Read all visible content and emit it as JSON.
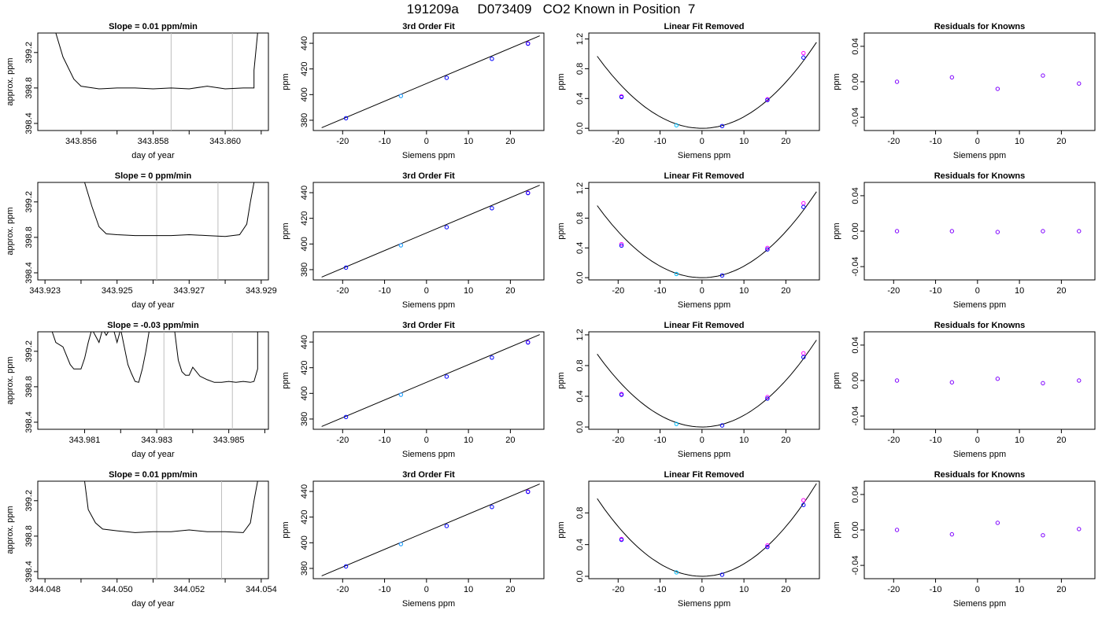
{
  "page": {
    "title": "191209a     D073409   CO2 Known in Position  7"
  },
  "colors": {
    "trace": "#000000",
    "grid_vline": "#bebebe",
    "points_siemens": "#0000ff",
    "points_alt": "#ff00ff",
    "points_cyan": "#00bfff",
    "residual_points": "#7f00ff"
  },
  "chart_data": [
    {
      "type": "line",
      "row": 0,
      "col": 0,
      "title": "Slope =  0.01  ppm/min",
      "xlabel": "day of year",
      "ylabel": "approx. ppm",
      "xlim": [
        343.8548,
        343.8612
      ],
      "ylim": [
        398.32,
        399.42
      ],
      "xticks": [
        343.856,
        343.857,
        343.858,
        343.859,
        343.86,
        343.861
      ],
      "xticklabels": [
        "343.856",
        "",
        "343.858",
        "",
        "343.860",
        ""
      ],
      "yticks": [
        398.4,
        398.8,
        399.2
      ],
      "yticklabels": [
        "398.4",
        "398.8",
        "399.2"
      ],
      "vlines": [
        343.8585,
        343.8602
      ],
      "x": [
        343.8553,
        343.8555,
        343.8558,
        343.856,
        343.8565,
        343.857,
        343.8575,
        343.858,
        343.8585,
        343.859,
        343.8595,
        343.86,
        343.8605,
        343.8608,
        343.8608,
        343.8609
      ],
      "y": [
        399.42,
        399.15,
        398.9,
        398.82,
        398.79,
        398.8,
        398.8,
        398.79,
        398.8,
        398.79,
        398.82,
        398.79,
        398.8,
        398.8,
        399.0,
        399.42
      ]
    },
    {
      "type": "scatter",
      "row": 0,
      "col": 1,
      "title": "3rd Order Fit",
      "xlabel": "Siemens ppm",
      "ylabel": "ppm",
      "xlim": [
        -27,
        28
      ],
      "ylim": [
        372,
        448
      ],
      "xticks": [
        -20,
        -10,
        0,
        10,
        20
      ],
      "xticklabels": [
        "-20",
        "-10",
        "0",
        "10",
        "20"
      ],
      "yticks": [
        380,
        400,
        420,
        440
      ],
      "yticklabels": [
        "380",
        "400",
        "420",
        "440"
      ],
      "curve": [
        [
          -25,
          374.2
        ],
        [
          27,
          445.8
        ]
      ],
      "points_siemens": [
        [
          -19.2,
          381.6
        ],
        [
          4.8,
          413.1
        ],
        [
          15.6,
          427.9
        ],
        [
          24.2,
          439.7
        ]
      ],
      "points_alt": [
        [
          -6.1,
          399.0
        ],
        [
          24.2,
          439.9
        ]
      ],
      "points_cyan": [
        [
          -6.1,
          398.9
        ]
      ]
    },
    {
      "type": "scatter",
      "row": 0,
      "col": 2,
      "title": "Linear Fit Removed",
      "xlabel": "Siemens ppm",
      "ylabel": "ppm",
      "xlim": [
        -27,
        28
      ],
      "ylim": [
        -0.03,
        1.28
      ],
      "xticks": [
        -20,
        -10,
        0,
        10,
        20
      ],
      "xticklabels": [
        "-20",
        "-10",
        "0",
        "10",
        "20"
      ],
      "yticks": [
        0.0,
        0.4,
        0.8,
        1.2
      ],
      "yticklabels": [
        "0.0",
        "0.4",
        "0.8",
        "1.2"
      ],
      "parabola": {
        "a": 0.00155,
        "x0": 0.0,
        "y0": 0.0,
        "xmin": -25,
        "xmax": 27.3
      },
      "points_siemens": [
        [
          -19.2,
          0.42
        ],
        [
          4.8,
          0.03
        ],
        [
          15.6,
          0.38
        ],
        [
          24.2,
          0.95
        ]
      ],
      "points_alt": [
        [
          -19.2,
          0.43
        ],
        [
          15.6,
          0.39
        ],
        [
          24.2,
          1.01
        ]
      ],
      "points_cyan": [
        [
          -6.1,
          0.04
        ]
      ]
    },
    {
      "type": "scatter",
      "row": 0,
      "col": 3,
      "title": "Residuals for Knowns",
      "xlabel": "Siemens ppm",
      "ylabel": "ppm",
      "xlim": [
        -27,
        28
      ],
      "ylim": [
        -0.055,
        0.055
      ],
      "xticks": [
        -20,
        -10,
        0,
        10,
        20
      ],
      "xticklabels": [
        "-20",
        "-10",
        "0",
        "10",
        "20"
      ],
      "yticks": [
        -0.04,
        0.0,
        0.04
      ],
      "yticklabels": [
        "-0.04",
        "0.00",
        "0.04"
      ],
      "points": [
        [
          -19.2,
          0.0
        ],
        [
          -6.1,
          0.005
        ],
        [
          4.8,
          -0.008
        ],
        [
          15.6,
          0.007
        ],
        [
          24.2,
          -0.002
        ]
      ]
    },
    {
      "type": "line",
      "row": 1,
      "col": 0,
      "title": "Slope =  0  ppm/min",
      "xlabel": "day of year",
      "ylabel": "approx. ppm",
      "xlim": [
        343.9228,
        343.9292
      ],
      "ylim": [
        398.32,
        399.42
      ],
      "xticks": [
        343.923,
        343.924,
        343.925,
        343.926,
        343.927,
        343.928,
        343.929
      ],
      "xticklabels": [
        "343.923",
        "",
        "343.925",
        "",
        "343.927",
        "",
        "343.929"
      ],
      "yticks": [
        398.4,
        398.8,
        399.2
      ],
      "yticklabels": [
        "398.4",
        "398.8",
        "399.2"
      ],
      "vlines": [
        343.9261,
        343.9278
      ],
      "x": [
        343.9241,
        343.9243,
        343.9245,
        343.9247,
        343.925,
        343.9255,
        343.926,
        343.9265,
        343.927,
        343.9275,
        343.928,
        343.9284,
        343.9286,
        343.9287,
        343.9288
      ],
      "y": [
        399.42,
        399.15,
        398.92,
        398.84,
        398.83,
        398.82,
        398.82,
        398.82,
        398.83,
        398.82,
        398.81,
        398.83,
        398.95,
        399.2,
        399.42
      ]
    },
    {
      "type": "scatter",
      "row": 1,
      "col": 1,
      "title": "3rd Order Fit",
      "xlabel": "Siemens ppm",
      "ylabel": "ppm",
      "xlim": [
        -27,
        28
      ],
      "ylim": [
        372,
        448
      ],
      "xticks": [
        -20,
        -10,
        0,
        10,
        20
      ],
      "xticklabels": [
        "-20",
        "-10",
        "0",
        "10",
        "20"
      ],
      "yticks": [
        380,
        400,
        420,
        440
      ],
      "yticklabels": [
        "380",
        "400",
        "420",
        "440"
      ],
      "curve": [
        [
          -25,
          374.2
        ],
        [
          27,
          445.8
        ]
      ],
      "points_siemens": [
        [
          -19.2,
          381.6
        ],
        [
          4.8,
          413.1
        ],
        [
          15.6,
          427.9
        ],
        [
          24.2,
          439.7
        ]
      ],
      "points_alt": [
        [
          -6.1,
          399.0
        ],
        [
          24.2,
          439.9
        ]
      ],
      "points_cyan": [
        [
          -6.1,
          398.9
        ]
      ]
    },
    {
      "type": "scatter",
      "row": 1,
      "col": 2,
      "title": "Linear Fit Removed",
      "xlabel": "Siemens ppm",
      "ylabel": "ppm",
      "xlim": [
        -27,
        28
      ],
      "ylim": [
        -0.03,
        1.28
      ],
      "xticks": [
        -20,
        -10,
        0,
        10,
        20
      ],
      "xticklabels": [
        "-20",
        "-10",
        "0",
        "10",
        "20"
      ],
      "yticks": [
        0.0,
        0.4,
        0.8,
        1.2
      ],
      "yticklabels": [
        "0.0",
        "0.4",
        "0.8",
        "1.2"
      ],
      "parabola": {
        "a": 0.00155,
        "x0": 0.0,
        "y0": 0.0,
        "xmin": -25,
        "xmax": 27.3
      },
      "points_siemens": [
        [
          -19.2,
          0.43
        ],
        [
          4.8,
          0.03
        ],
        [
          15.6,
          0.38
        ],
        [
          24.2,
          0.95
        ]
      ],
      "points_alt": [
        [
          -19.2,
          0.45
        ],
        [
          15.6,
          0.4
        ],
        [
          24.2,
          1.0
        ]
      ],
      "points_cyan": [
        [
          -6.1,
          0.05
        ]
      ]
    },
    {
      "type": "scatter",
      "row": 1,
      "col": 3,
      "title": "Residuals for Knowns",
      "xlabel": "Siemens ppm",
      "ylabel": "ppm",
      "xlim": [
        -27,
        28
      ],
      "ylim": [
        -0.055,
        0.055
      ],
      "xticks": [
        -20,
        -10,
        0,
        10,
        20
      ],
      "xticklabels": [
        "-20",
        "-10",
        "0",
        "10",
        "20"
      ],
      "yticks": [
        -0.04,
        0.0,
        0.04
      ],
      "yticklabels": [
        "-0.04",
        "0.00",
        "0.04"
      ],
      "points": [
        [
          -19.2,
          0.0
        ],
        [
          -6.1,
          0.0
        ],
        [
          4.8,
          -0.001
        ],
        [
          15.6,
          0.0
        ],
        [
          24.2,
          0.0
        ]
      ]
    },
    {
      "type": "line",
      "row": 2,
      "col": 0,
      "title": "Slope =  -0.03  ppm/min",
      "xlabel": "day of year",
      "ylabel": "approx. ppm",
      "xlim": [
        343.9797,
        343.9861
      ],
      "ylim": [
        398.32,
        399.42
      ],
      "xticks": [
        343.981,
        343.982,
        343.983,
        343.984,
        343.985,
        343.986
      ],
      "xticklabels": [
        "343.981",
        "",
        "343.983",
        "",
        "343.985",
        ""
      ],
      "yticks": [
        398.4,
        398.8,
        399.2
      ],
      "yticklabels": [
        "398.4",
        "398.8",
        "399.2"
      ],
      "vlines": [
        343.9832,
        343.9851
      ],
      "x": [
        343.9801,
        343.9802,
        343.9804,
        343.9806,
        343.9807,
        343.9809,
        343.981,
        343.9811,
        343.9812,
        343.9814,
        343.9815,
        343.9816,
        343.9817,
        343.9818,
        343.9819,
        343.982,
        343.9821,
        343.9822,
        343.9823,
        343.9824,
        343.9825,
        343.9826,
        343.9827,
        343.9828,
        343.983,
        343.9832,
        343.9834,
        343.9835,
        343.9836,
        343.9837,
        343.9838,
        343.9839,
        343.984,
        343.9842,
        343.9844,
        343.9846,
        343.9848,
        343.985,
        343.9852,
        343.9854,
        343.9856,
        343.9857,
        343.9858,
        343.9858
      ],
      "y": [
        399.42,
        399.3,
        399.25,
        399.05,
        399.0,
        399.0,
        399.12,
        399.3,
        399.45,
        399.3,
        399.45,
        399.38,
        399.45,
        399.45,
        399.3,
        399.45,
        399.25,
        399.05,
        398.95,
        398.86,
        398.85,
        399.0,
        399.2,
        399.45,
        399.45,
        399.45,
        399.45,
        399.42,
        399.1,
        398.97,
        398.93,
        398.93,
        399.02,
        398.92,
        398.88,
        398.85,
        398.85,
        398.86,
        398.85,
        398.86,
        398.85,
        398.86,
        399.0,
        399.42
      ]
    },
    {
      "type": "scatter",
      "row": 2,
      "col": 1,
      "title": "3rd Order Fit",
      "xlabel": "Siemens ppm",
      "ylabel": "ppm",
      "xlim": [
        -27,
        28
      ],
      "ylim": [
        372,
        448
      ],
      "xticks": [
        -20,
        -10,
        0,
        10,
        20
      ],
      "xticklabels": [
        "-20",
        "-10",
        "0",
        "10",
        "20"
      ],
      "yticks": [
        380,
        400,
        420,
        440
      ],
      "yticklabels": [
        "380",
        "400",
        "420",
        "440"
      ],
      "curve": [
        [
          -25,
          374.2
        ],
        [
          27,
          445.8
        ]
      ],
      "points_siemens": [
        [
          -19.2,
          381.6
        ],
        [
          4.8,
          413.1
        ],
        [
          15.6,
          427.9
        ],
        [
          24.2,
          439.7
        ]
      ],
      "points_alt": [
        [
          -6.1,
          399.0
        ],
        [
          24.2,
          439.9
        ]
      ],
      "points_cyan": [
        [
          -6.1,
          398.9
        ]
      ]
    },
    {
      "type": "scatter",
      "row": 2,
      "col": 2,
      "title": "Linear Fit Removed",
      "xlabel": "Siemens ppm",
      "ylabel": "ppm",
      "xlim": [
        -27,
        28
      ],
      "ylim": [
        -0.03,
        1.24
      ],
      "xticks": [
        -20,
        -10,
        0,
        10,
        20
      ],
      "xticklabels": [
        "-20",
        "-10",
        "0",
        "10",
        "20"
      ],
      "yticks": [
        0.0,
        0.4,
        0.8,
        1.2
      ],
      "yticklabels": [
        "0.0",
        "0.4",
        "0.8",
        "1.2"
      ],
      "parabola": {
        "a": 0.00152,
        "x0": 0.0,
        "y0": 0.0,
        "xmin": -25,
        "xmax": 27.3
      },
      "points_siemens": [
        [
          -19.2,
          0.42
        ],
        [
          4.8,
          0.02
        ],
        [
          15.6,
          0.37
        ],
        [
          24.2,
          0.91
        ]
      ],
      "points_alt": [
        [
          -19.2,
          0.43
        ],
        [
          15.6,
          0.39
        ],
        [
          24.2,
          0.96
        ]
      ],
      "points_cyan": [
        [
          -6.1,
          0.04
        ]
      ]
    },
    {
      "type": "scatter",
      "row": 2,
      "col": 3,
      "title": "Residuals for Knowns",
      "xlabel": "Siemens ppm",
      "ylabel": "ppm",
      "xlim": [
        -27,
        28
      ],
      "ylim": [
        -0.055,
        0.055
      ],
      "xticks": [
        -20,
        -10,
        0,
        10,
        20
      ],
      "xticklabels": [
        "-20",
        "-10",
        "0",
        "10",
        "20"
      ],
      "yticks": [
        -0.04,
        0.0,
        0.04
      ],
      "yticklabels": [
        "-0.04",
        "0.00",
        "0.04"
      ],
      "points": [
        [
          -19.2,
          0.0
        ],
        [
          -6.1,
          -0.002
        ],
        [
          4.8,
          0.002
        ],
        [
          15.6,
          -0.003
        ],
        [
          24.2,
          0.0
        ]
      ]
    },
    {
      "type": "line",
      "row": 3,
      "col": 0,
      "title": "Slope =  0.01  ppm/min",
      "xlabel": "day of year",
      "ylabel": "approx. ppm",
      "xlim": [
        344.0478,
        344.0542
      ],
      "ylim": [
        398.32,
        399.42
      ],
      "xticks": [
        344.048,
        344.049,
        344.05,
        344.051,
        344.052,
        344.053,
        344.054
      ],
      "xticklabels": [
        "344.048",
        "",
        "344.050",
        "",
        "344.052",
        "",
        "344.054"
      ],
      "yticks": [
        398.4,
        398.8,
        399.2
      ],
      "yticklabels": [
        "398.4",
        "398.8",
        "399.2"
      ],
      "vlines": [
        344.0511,
        344.0529
      ],
      "x": [
        344.0491,
        344.0492,
        344.0494,
        344.0496,
        344.05,
        344.0505,
        344.051,
        344.0515,
        344.052,
        344.0525,
        344.053,
        344.0535,
        344.0537,
        344.0538,
        344.0539
      ],
      "y": [
        399.42,
        399.1,
        398.95,
        398.88,
        398.86,
        398.84,
        398.85,
        398.85,
        398.87,
        398.85,
        398.85,
        398.84,
        398.95,
        399.2,
        399.42
      ]
    },
    {
      "type": "scatter",
      "row": 3,
      "col": 1,
      "title": "3rd Order Fit",
      "xlabel": "Siemens ppm",
      "ylabel": "ppm",
      "xlim": [
        -27,
        28
      ],
      "ylim": [
        372,
        448
      ],
      "xticks": [
        -20,
        -10,
        0,
        10,
        20
      ],
      "xticklabels": [
        "-20",
        "-10",
        "0",
        "10",
        "20"
      ],
      "yticks": [
        380,
        400,
        420,
        440
      ],
      "yticklabels": [
        "380",
        "400",
        "420",
        "440"
      ],
      "curve": [
        [
          -25,
          374.2
        ],
        [
          27,
          445.8
        ]
      ],
      "points_siemens": [
        [
          -19.2,
          381.6
        ],
        [
          4.8,
          413.1
        ],
        [
          15.6,
          427.9
        ],
        [
          24.2,
          439.7
        ]
      ],
      "points_alt": [
        [
          -6.1,
          399.0
        ],
        [
          24.2,
          439.9
        ]
      ],
      "points_cyan": [
        [
          -6.1,
          398.9
        ]
      ]
    },
    {
      "type": "scatter",
      "row": 3,
      "col": 2,
      "title": "Linear Fit Removed",
      "xlabel": "Siemens ppm",
      "ylabel": "ppm",
      "xlim": [
        -27,
        28
      ],
      "ylim": [
        -0.03,
        1.2
      ],
      "xticks": [
        -20,
        -10,
        0,
        10,
        20
      ],
      "xticklabels": [
        "-20",
        "-10",
        "0",
        "10",
        "20"
      ],
      "yticks": [
        0.0,
        0.4,
        0.8
      ],
      "yticklabels": [
        "0.0",
        "0.4",
        "0.8"
      ],
      "parabola": {
        "a": 0.00157,
        "x0": 0.0,
        "y0": 0.0,
        "xmin": -25,
        "xmax": 27.3
      },
      "points_siemens": [
        [
          -19.2,
          0.46
        ],
        [
          4.8,
          0.02
        ],
        [
          15.6,
          0.37
        ],
        [
          24.2,
          0.9
        ]
      ],
      "points_alt": [
        [
          -19.2,
          0.47
        ],
        [
          15.6,
          0.39
        ],
        [
          24.2,
          0.96
        ]
      ],
      "points_cyan": [
        [
          -6.1,
          0.05
        ]
      ]
    },
    {
      "type": "scatter",
      "row": 3,
      "col": 3,
      "title": "Residuals for Knowns",
      "xlabel": "Siemens ppm",
      "ylabel": "ppm",
      "xlim": [
        -27,
        28
      ],
      "ylim": [
        -0.055,
        0.055
      ],
      "xticks": [
        -20,
        -10,
        0,
        10,
        20
      ],
      "xticklabels": [
        "-20",
        "-10",
        "0",
        "10",
        "20"
      ],
      "yticks": [
        -0.04,
        0.0,
        0.04
      ],
      "yticklabels": [
        "-0.04",
        "0.00",
        "0.04"
      ],
      "points": [
        [
          -19.2,
          0.0
        ],
        [
          -6.1,
          -0.005
        ],
        [
          4.8,
          0.008
        ],
        [
          15.6,
          -0.006
        ],
        [
          24.2,
          0.001
        ]
      ]
    }
  ]
}
